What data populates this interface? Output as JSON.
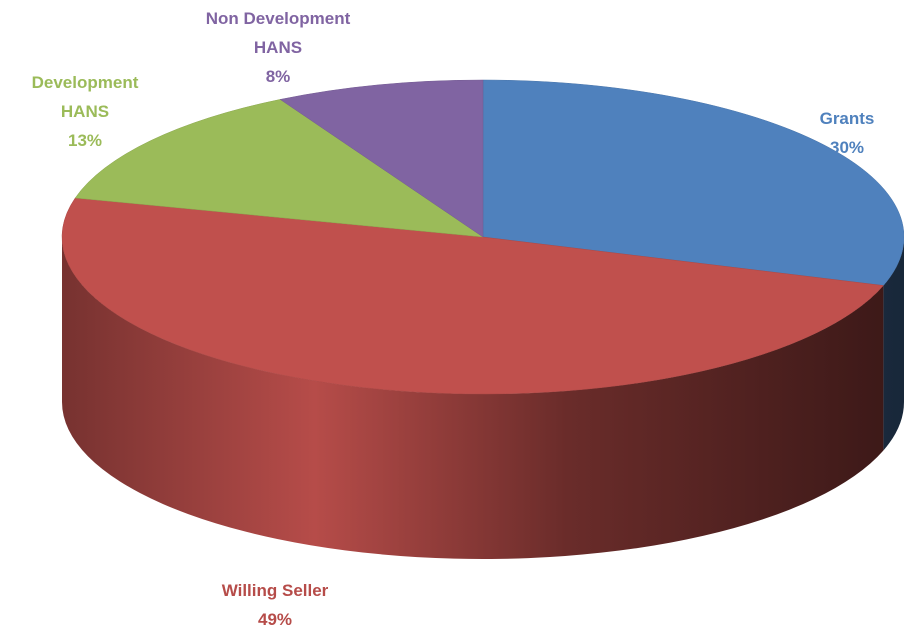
{
  "chart_data": {
    "type": "pie",
    "categories": [
      "Grants",
      "Willing Seller",
      "Development HANS",
      "Non Development HANS"
    ],
    "values": [
      30,
      49,
      13,
      8
    ],
    "value_labels": [
      "30%",
      "49%",
      "13%",
      "8%"
    ],
    "colors": [
      "#4f81bd",
      "#c0504d",
      "#9bbb59",
      "#8064a2"
    ],
    "legend": false
  }
}
